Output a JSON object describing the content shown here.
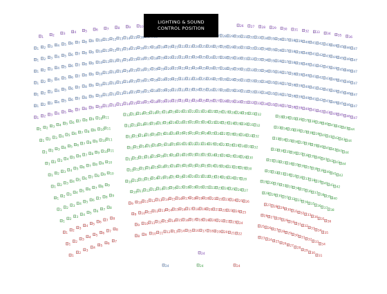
{
  "booth": {
    "line1": "LIGHTING & SOUND",
    "line2": "CONTROL POSITION"
  },
  "colors": {
    "blue": "#4a6fa5",
    "purple": "#7b3fb0",
    "green": "#3fa346",
    "red": "#c43a3a",
    "chair_fill": "#dcdcdc"
  },
  "rows": [
    {
      "sections": [
        {
          "from": 1,
          "to": 12,
          "color": "purple"
        },
        {
          "from": 22,
          "to": 36,
          "color": "purple"
        }
      ]
    },
    {
      "sections": [
        {
          "from": 1,
          "to": 47,
          "color": "blue"
        }
      ]
    },
    {
      "sections": [
        {
          "from": 1,
          "to": 47,
          "color": "blue"
        }
      ]
    },
    {
      "sections": [
        {
          "from": 1,
          "to": 47,
          "color": "blue"
        }
      ]
    },
    {
      "sections": [
        {
          "from": 1,
          "to": 47,
          "color": "blue"
        }
      ]
    },
    {
      "sections": [
        {
          "from": 1,
          "to": 47,
          "color": "blue"
        }
      ]
    },
    {
      "sections": [
        {
          "from": 1,
          "to": 47,
          "color": "blue"
        }
      ]
    },
    {
      "sections": [
        {
          "from": 1,
          "to": 47,
          "color": "purple"
        }
      ]
    },
    {
      "sections": [
        {
          "from": 1,
          "to": 11,
          "color": "green"
        },
        {
          "from": 12,
          "to": 32,
          "color": "green"
        },
        {
          "from": 33,
          "to": 44,
          "color": "green"
        }
      ]
    },
    {
      "sections": [
        {
          "from": 1,
          "to": 11,
          "color": "green"
        },
        {
          "from": 12,
          "to": 32,
          "color": "green"
        },
        {
          "from": 33,
          "to": 44,
          "color": "green"
        }
      ]
    },
    {
      "sections": [
        {
          "from": 1,
          "to": 11,
          "color": "green"
        },
        {
          "from": 12,
          "to": 32,
          "color": "green"
        },
        {
          "from": 33,
          "to": 44,
          "color": "green"
        }
      ]
    },
    {
      "sections": [
        {
          "from": 1,
          "to": 11,
          "color": "green"
        },
        {
          "from": 12,
          "to": 32,
          "color": "green"
        },
        {
          "from": 33,
          "to": 44,
          "color": "green"
        }
      ]
    },
    {
      "sections": [
        {
          "from": 1,
          "to": 10,
          "color": "green"
        },
        {
          "from": 11,
          "to": 30,
          "color": "green"
        },
        {
          "from": 31,
          "to": 42,
          "color": "green"
        }
      ]
    },
    {
      "sections": [
        {
          "from": 1,
          "to": 10,
          "color": "green"
        },
        {
          "from": 11,
          "to": 30,
          "color": "green"
        },
        {
          "from": 31,
          "to": 42,
          "color": "green"
        }
      ]
    },
    {
      "sections": [
        {
          "from": 1,
          "to": 9,
          "color": "green"
        },
        {
          "from": 10,
          "to": 28,
          "color": "green"
        },
        {
          "from": 29,
          "to": 40,
          "color": "green"
        }
      ]
    },
    {
      "sections": [
        {
          "from": 1,
          "to": 9,
          "color": "green"
        },
        {
          "from": 10,
          "to": 27,
          "color": "green"
        },
        {
          "from": 28,
          "to": 38,
          "color": "green"
        }
      ]
    },
    {
      "sections": [
        {
          "from": 1,
          "to": 8,
          "color": "green"
        },
        {
          "from": 9,
          "to": 26,
          "color": "red"
        },
        {
          "from": 27,
          "to": 36,
          "color": "red"
        }
      ]
    },
    {
      "sections": [
        {
          "from": 1,
          "to": 8,
          "color": "red"
        },
        {
          "from": 9,
          "to": 25,
          "color": "red"
        },
        {
          "from": 26,
          "to": 35,
          "color": "red"
        }
      ]
    },
    {
      "sections": [
        {
          "from": 1,
          "to": 8,
          "color": "red"
        },
        {
          "from": 9,
          "to": 24,
          "color": "red"
        },
        {
          "from": 25,
          "to": 34,
          "color": "red"
        }
      ]
    },
    {
      "sections": [
        {
          "from": 1,
          "to": 7,
          "color": "red"
        },
        {
          "from": 8,
          "to": 22,
          "color": "red"
        },
        {
          "from": 23,
          "to": 31,
          "color": "red"
        }
      ]
    }
  ],
  "wheelchair": [
    {
      "number": "24",
      "color": "purple"
    },
    {
      "number": "24",
      "color": "blue"
    },
    {
      "number": "24",
      "color": "green"
    },
    {
      "number": "24",
      "color": "red"
    }
  ]
}
